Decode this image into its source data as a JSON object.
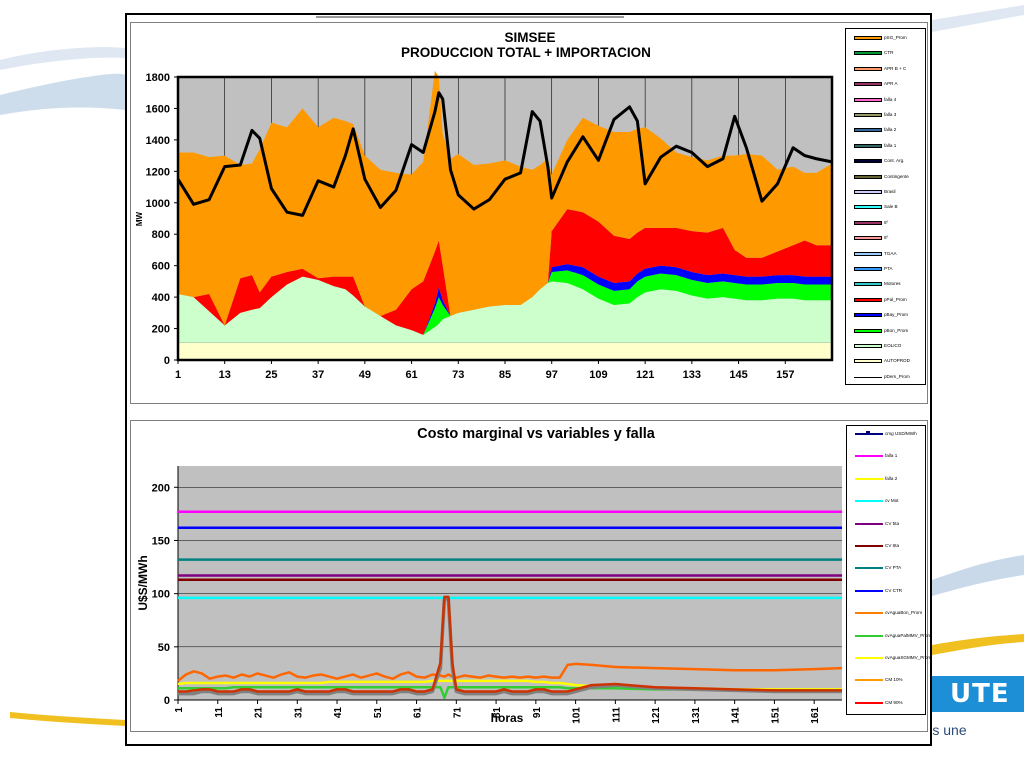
{
  "branding": {
    "logo_text": "UTE",
    "tagline_prefix": "...",
    "tagline_suffix": "que nos une",
    "brand_color": "#1c8fd6"
  },
  "chart_data": [
    {
      "type": "area",
      "title": "SIMSEE",
      "subtitle": "PRODUCCION TOTAL + IMPORTACION",
      "ylabel": "MW",
      "xlabel": "",
      "ylim": [
        0,
        1800
      ],
      "xlim": [
        1,
        169
      ],
      "yticks": [
        0,
        200,
        400,
        600,
        800,
        1000,
        1200,
        1400,
        1600,
        1800
      ],
      "xticks": [
        1,
        13,
        25,
        37,
        49,
        61,
        73,
        85,
        97,
        109,
        121,
        133,
        145,
        157
      ],
      "grid": "vertical",
      "legend_position": "right",
      "legend": [
        {
          "name": "pSG_Prom",
          "color": "#ff9900"
        },
        {
          "name": "CTR",
          "color": "#009933"
        },
        {
          "name": "APR B + C",
          "color": "#ff9966"
        },
        {
          "name": "APR A",
          "color": "#993366"
        },
        {
          "name": "falla 4",
          "color": "#ff66cc"
        },
        {
          "name": "falla 3",
          "color": "#999966"
        },
        {
          "name": "falla 2",
          "color": "#336699"
        },
        {
          "name": "falla 1",
          "color": "#336666"
        },
        {
          "name": "Cont. Arg.",
          "color": "#000033"
        },
        {
          "name": "Contingente",
          "color": "#666633"
        },
        {
          "name": "Brasil",
          "color": "#ccccff"
        },
        {
          "name": "Sale B",
          "color": "#33ffff"
        },
        {
          "name": "5º",
          "color": "#993366"
        },
        {
          "name": "6º",
          "color": "#ff9999"
        },
        {
          "name": "TGAA",
          "color": "#99ccff"
        },
        {
          "name": "PTA",
          "color": "#3399ff"
        },
        {
          "name": "Motores",
          "color": "#33cccc"
        },
        {
          "name": "pPal_Prom",
          "color": "#ff0000"
        },
        {
          "name": "pBay_Prom",
          "color": "#0000ff"
        },
        {
          "name": "pBon_Prom",
          "color": "#00ff00"
        },
        {
          "name": "EOLICO",
          "color": "#ccffcc"
        },
        {
          "name": "AUTOPROD",
          "color": "#ffffcc"
        },
        {
          "name": "pDem_Prom",
          "color": "#000000"
        }
      ],
      "x": [
        1,
        5,
        9,
        13,
        17,
        20,
        22,
        25,
        29,
        33,
        37,
        41,
        44,
        46,
        49,
        53,
        57,
        61,
        64,
        67,
        68,
        69,
        71,
        73,
        77,
        81,
        85,
        89,
        92,
        94,
        96,
        97,
        101,
        105,
        109,
        113,
        117,
        119,
        121,
        125,
        129,
        133,
        137,
        141,
        144,
        147,
        151,
        155,
        159,
        162,
        165,
        169
      ],
      "series": [
        {
          "name": "AUTOPROD",
          "values": [
            110,
            110,
            110,
            110,
            110,
            110,
            110,
            110,
            110,
            110,
            110,
            110,
            110,
            110,
            110,
            110,
            110,
            110,
            110,
            110,
            110,
            110,
            110,
            110,
            110,
            110,
            110,
            110,
            110,
            110,
            110,
            110,
            110,
            110,
            110,
            110,
            110,
            110,
            110,
            110,
            110,
            110,
            110,
            110,
            110,
            110,
            110,
            110,
            110,
            110,
            110,
            110
          ]
        },
        {
          "name": "EOLICO",
          "values": [
            310,
            290,
            200,
            110,
            190,
            210,
            220,
            290,
            370,
            420,
            400,
            360,
            340,
            300,
            230,
            170,
            110,
            80,
            50,
            100,
            120,
            150,
            170,
            190,
            210,
            230,
            240,
            240,
            290,
            340,
            380,
            390,
            380,
            340,
            280,
            240,
            250,
            290,
            320,
            340,
            330,
            300,
            280,
            290,
            280,
            270,
            270,
            280,
            280,
            270,
            270,
            270
          ]
        },
        {
          "name": "pBon_Prom",
          "values": [
            0,
            0,
            0,
            0,
            0,
            0,
            0,
            0,
            0,
            0,
            0,
            0,
            0,
            0,
            0,
            0,
            0,
            0,
            0,
            120,
            170,
            90,
            0,
            0,
            0,
            0,
            0,
            0,
            0,
            0,
            0,
            60,
            80,
            90,
            90,
            90,
            90,
            100,
            100,
            100,
            100,
            100,
            100,
            100,
            100,
            100,
            100,
            100,
            100,
            100,
            100,
            100
          ]
        },
        {
          "name": "pBay_Prom",
          "values": [
            0,
            0,
            0,
            0,
            0,
            0,
            0,
            0,
            0,
            0,
            0,
            0,
            0,
            0,
            0,
            0,
            0,
            0,
            0,
            30,
            60,
            30,
            0,
            0,
            0,
            0,
            0,
            0,
            0,
            0,
            0,
            30,
            40,
            50,
            50,
            50,
            50,
            50,
            50,
            50,
            50,
            50,
            50,
            50,
            50,
            50,
            50,
            50,
            50,
            50,
            50,
            50
          ]
        },
        {
          "name": "pPal_Prom",
          "values": [
            0,
            0,
            110,
            0,
            220,
            220,
            100,
            130,
            80,
            50,
            10,
            60,
            80,
            120,
            0,
            0,
            100,
            260,
            340,
            330,
            300,
            220,
            0,
            0,
            0,
            0,
            0,
            0,
            0,
            0,
            0,
            230,
            350,
            350,
            350,
            300,
            270,
            260,
            260,
            240,
            250,
            260,
            270,
            290,
            160,
            120,
            120,
            150,
            190,
            230,
            200,
            200
          ]
        },
        {
          "name": "pSG_Prom",
          "values": [
            900,
            920,
            870,
            1080,
            720,
            710,
            910,
            980,
            920,
            1020,
            960,
            1010,
            990,
            970,
            960,
            930,
            870,
            730,
            760,
            1150,
            1040,
            840,
            1000,
            1010,
            920,
            910,
            920,
            880,
            810,
            790,
            790,
            360,
            440,
            600,
            610,
            660,
            680,
            660,
            640,
            570,
            480,
            470,
            460,
            460,
            600,
            660,
            650,
            520,
            500,
            430,
            460,
            520
          ]
        }
      ],
      "demand": {
        "name": "pDem_Prom",
        "values": [
          1150,
          990,
          1020,
          1230,
          1240,
          1460,
          1410,
          1090,
          940,
          920,
          1140,
          1100,
          1300,
          1470,
          1150,
          970,
          1080,
          1370,
          1320,
          1580,
          1700,
          1660,
          1210,
          1050,
          960,
          1020,
          1150,
          1190,
          1580,
          1520,
          1230,
          1030,
          1260,
          1420,
          1270,
          1530,
          1610,
          1520,
          1120,
          1290,
          1360,
          1320,
          1230,
          1280,
          1550,
          1350,
          1010,
          1120,
          1350,
          1300,
          1280,
          1260
        ]
      }
    },
    {
      "type": "line",
      "title": "Costo marginal  vs variables  y falla",
      "xlabel": "horas",
      "ylabel": "U$S/MWh",
      "ylim": [
        0,
        220
      ],
      "xlim": [
        1,
        168
      ],
      "yticks": [
        0,
        50,
        100,
        150,
        200
      ],
      "xticks": [
        1,
        11,
        21,
        31,
        41,
        51,
        61,
        71,
        81,
        91,
        101,
        111,
        121,
        131,
        141,
        151,
        161
      ],
      "grid": "horizontal",
      "legend_position": "right",
      "legend": [
        {
          "name": "cmg USD/MWh",
          "color": "#000080"
        },
        {
          "name": "falla 1",
          "color": "#ff00ff"
        },
        {
          "name": "falla 2",
          "color": "#ffff00"
        },
        {
          "name": "cv Mot",
          "color": "#00ffff"
        },
        {
          "name": "CV 5ta",
          "color": "#800080"
        },
        {
          "name": "CV 6ta",
          "color": "#800000"
        },
        {
          "name": "CV PTA",
          "color": "#008080"
        },
        {
          "name": "CV CTR",
          "color": "#0000ff"
        },
        {
          "name": "cvAguaBon_Prom",
          "color": "#ff8000"
        },
        {
          "name": "cvAguaPalMMV_Prom",
          "color": "#33cc33"
        },
        {
          "name": "cvAguaSGMMV_Prom",
          "color": "#ffff00"
        },
        {
          "name": "CM 10%",
          "color": "#ff9900"
        },
        {
          "name": "CM 90%",
          "color": "#ff0000"
        }
      ],
      "hlines": [
        {
          "name": "falla 1",
          "value": 177,
          "color": "#ff00ff"
        },
        {
          "name": "CV CTR",
          "value": 162,
          "color": "#0000ff"
        },
        {
          "name": "CV PTA",
          "value": 132,
          "color": "#008080"
        },
        {
          "name": "CV 5ta",
          "value": 117,
          "color": "#800080"
        },
        {
          "name": "CV 6ta",
          "value": 113,
          "color": "#800000"
        },
        {
          "name": "cv Mot",
          "value": 96,
          "color": "#00ffff"
        }
      ],
      "x": [
        1,
        3,
        5,
        7,
        9,
        11,
        13,
        15,
        17,
        19,
        21,
        23,
        25,
        27,
        29,
        31,
        33,
        35,
        37,
        39,
        41,
        43,
        45,
        47,
        49,
        51,
        53,
        55,
        57,
        59,
        61,
        63,
        65,
        67,
        68,
        69,
        70,
        71,
        73,
        75,
        77,
        79,
        81,
        83,
        85,
        87,
        89,
        91,
        93,
        95,
        97,
        99,
        101,
        105,
        111,
        121,
        131,
        141,
        151,
        161,
        168
      ],
      "series": [
        {
          "name": "cvAguaBon_Prom",
          "color": "#ff6600",
          "values": [
            18,
            24,
            27,
            25,
            20,
            22,
            23,
            21,
            24,
            22,
            25,
            23,
            21,
            24,
            26,
            22,
            21,
            23,
            24,
            22,
            20,
            22,
            24,
            21,
            23,
            25,
            22,
            20,
            24,
            26,
            22,
            21,
            24,
            23,
            22,
            24,
            22,
            21,
            23,
            22,
            21,
            23,
            22,
            21,
            22,
            21,
            22,
            21,
            22,
            21,
            21,
            33,
            34,
            33,
            31,
            30,
            29,
            28,
            28,
            29,
            30
          ]
        },
        {
          "name": "cvAguaSGMMV_Prom",
          "color": "#ffff00",
          "values": [
            15,
            16,
            16,
            16,
            16,
            16,
            16,
            16,
            16,
            16,
            16,
            16,
            16,
            16,
            16,
            16,
            16,
            16,
            16,
            17,
            17,
            17,
            17,
            17,
            17,
            17,
            17,
            17,
            17,
            17,
            17,
            17,
            18,
            18,
            18,
            18,
            18,
            18,
            18,
            18,
            18,
            18,
            18,
            18,
            18,
            18,
            18,
            17,
            17,
            16,
            16,
            15,
            14,
            13,
            12,
            11,
            11,
            10,
            10,
            10,
            10
          ]
        },
        {
          "name": "cvAguaPalMMV_Prom",
          "color": "#33cc33",
          "values": [
            11,
            11,
            11,
            11,
            11,
            11,
            11,
            12,
            12,
            12,
            12,
            12,
            12,
            12,
            12,
            12,
            12,
            12,
            12,
            12,
            12,
            12,
            12,
            12,
            12,
            12,
            12,
            12,
            12,
            12,
            12,
            12,
            12,
            12,
            2,
            12,
            12,
            12,
            12,
            12,
            12,
            12,
            12,
            12,
            12,
            12,
            12,
            12,
            12,
            12,
            12,
            11,
            11,
            11,
            11,
            10,
            10,
            9,
            9,
            9,
            9
          ]
        },
        {
          "name": "cmg USD/MWh",
          "color": "#808080",
          "values": [
            6,
            6,
            6,
            8,
            8,
            6,
            6,
            6,
            8,
            8,
            6,
            6,
            6,
            6,
            6,
            8,
            6,
            6,
            6,
            6,
            8,
            8,
            6,
            6,
            6,
            6,
            6,
            6,
            8,
            8,
            6,
            6,
            8,
            30,
            95,
            95,
            30,
            8,
            6,
            6,
            6,
            6,
            6,
            8,
            6,
            6,
            6,
            8,
            8,
            6,
            6,
            6,
            8,
            12,
            14,
            11,
            10,
            9,
            8,
            8,
            8
          ]
        },
        {
          "name": "CM 90%",
          "color": "#cc3300",
          "values": [
            8,
            8,
            9,
            10,
            10,
            8,
            8,
            8,
            10,
            10,
            8,
            8,
            8,
            8,
            8,
            10,
            8,
            8,
            8,
            8,
            10,
            10,
            8,
            8,
            8,
            8,
            8,
            8,
            10,
            10,
            8,
            8,
            10,
            35,
            97,
            97,
            35,
            10,
            8,
            8,
            8,
            8,
            8,
            10,
            8,
            8,
            8,
            10,
            10,
            8,
            8,
            8,
            10,
            14,
            15,
            12,
            11,
            10,
            9,
            9,
            9
          ]
        }
      ]
    }
  ]
}
